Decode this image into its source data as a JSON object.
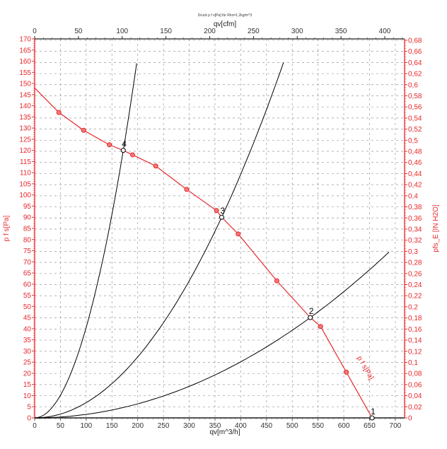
{
  "chart_data": {
    "type": "line",
    "title": "Druck p f s[Pa] für Rho=1,2kg/m^3",
    "xlabel": "qv[m^3/h]",
    "x2label": "qv[cfm]",
    "ylabel": "p f s[Pa]",
    "y2label": "pfs_E [IN H2O]",
    "xlim": [
      0,
      718
    ],
    "ylim": [
      0,
      170
    ],
    "x_ticks": [
      0,
      50,
      100,
      150,
      200,
      250,
      300,
      350,
      400,
      450,
      500,
      550,
      600,
      650,
      700
    ],
    "x2_ticks": [
      0,
      50,
      100,
      150,
      200,
      250,
      300,
      350,
      400
    ],
    "y_ticks": [
      0,
      5,
      10,
      15,
      20,
      25,
      30,
      35,
      40,
      45,
      50,
      55,
      60,
      65,
      70,
      75,
      80,
      85,
      90,
      95,
      100,
      105,
      110,
      115,
      120,
      125,
      130,
      135,
      140,
      145,
      150,
      155,
      160,
      165,
      170
    ],
    "y2_ticks": [
      "0",
      "0,02",
      "0,04",
      "0,06",
      "0,08",
      "0,1",
      "0,12",
      "0,14",
      "0,16",
      "0,18",
      "0,2",
      "0,22",
      "0,24",
      "0,26",
      "0,28",
      "0,3",
      "0,32",
      "0,34",
      "0,36",
      "0,38",
      "0,4",
      "0,42",
      "0,44",
      "0,46",
      "0,48",
      "0,5",
      "0,52",
      "0,54",
      "0,56",
      "0,58",
      "0,6",
      "0,62",
      "0,64",
      "0,66",
      "0,68"
    ],
    "grid": true,
    "colors": {
      "fan": "#e8262a",
      "system": "#000000",
      "axis_left": "#e8262a"
    },
    "fan_curve": {
      "name": "p f s[Pa]",
      "x": [
        0,
        47,
        95,
        145,
        172,
        190,
        235,
        295,
        353,
        363,
        395,
        470,
        535,
        555,
        605,
        655
      ],
      "y": [
        148,
        137,
        129,
        122.5,
        120,
        118,
        113,
        102.5,
        93,
        90,
        82.5,
        61.5,
        45,
        41,
        20.5,
        0
      ],
      "markers_x": [
        47,
        95,
        145,
        190,
        235,
        295,
        353,
        395,
        470,
        555,
        605
      ]
    },
    "system_curves": [
      {
        "id": "4",
        "k_point": [
          172,
          120
        ],
        "x_max": 198
      },
      {
        "id": "3",
        "k_point": [
          363,
          90
        ],
        "x_max": 483
      },
      {
        "id": "2",
        "k_point": [
          535,
          45
        ],
        "x_max": 688
      }
    ],
    "operating_points": [
      {
        "label": "1",
        "x": 655,
        "y": 0
      },
      {
        "label": "2",
        "x": 535,
        "y": 45
      },
      {
        "label": "3",
        "x": 363,
        "y": 90
      },
      {
        "label": "4",
        "x": 172,
        "y": 120
      }
    ]
  }
}
